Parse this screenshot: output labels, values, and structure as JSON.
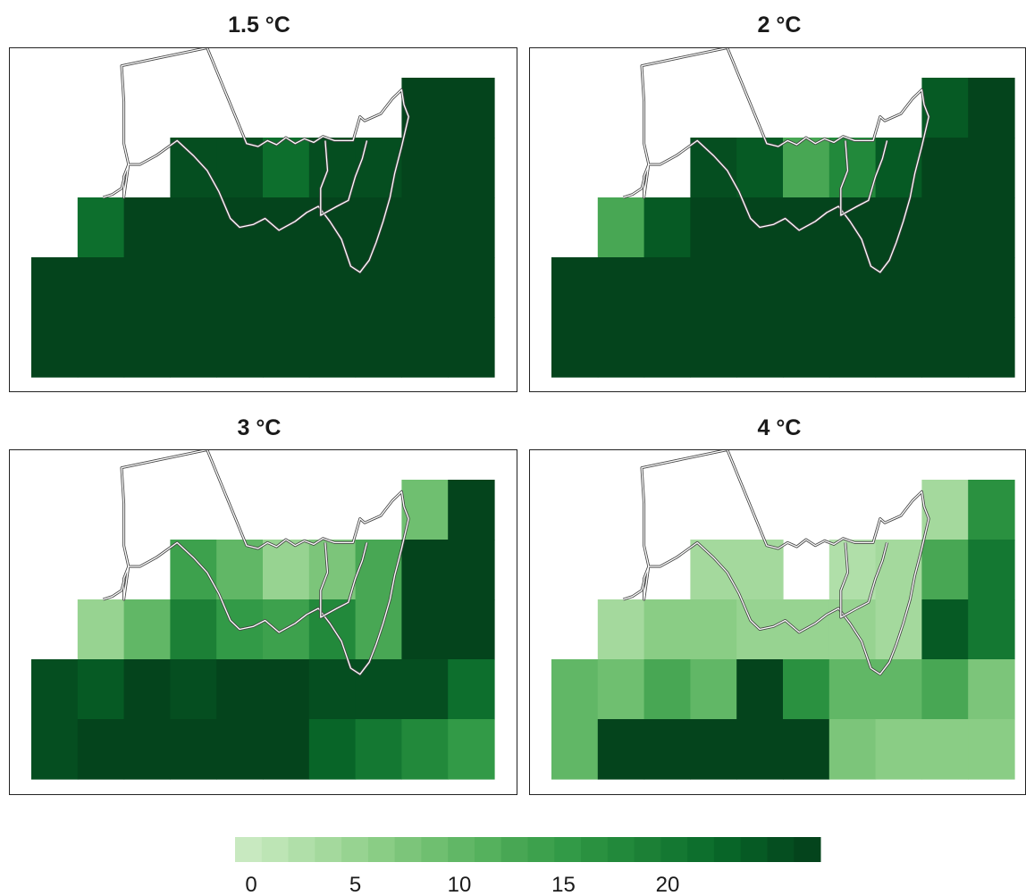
{
  "chart_data": {
    "type": "heatmap",
    "grid": {
      "cols": 10,
      "rows": 5
    },
    "colorbar": {
      "min": 0,
      "max": 21,
      "ticks": [
        0,
        5,
        10,
        15,
        20
      ],
      "tick_labels": [
        "0",
        "5",
        "10",
        "15",
        "20"
      ],
      "palette": [
        "#c8e9c0",
        "#bde5b5",
        "#b0dfa9",
        "#a4d99d",
        "#97d391",
        "#8acd85",
        "#7cc57a",
        "#6fbf70",
        "#61b766",
        "#55b15d",
        "#48a754",
        "#3da14d",
        "#329a47",
        "#2a9140",
        "#22893b",
        "#1c8036",
        "#147832",
        "#0d6f2d",
        "#086528",
        "#065a24",
        "#054e20",
        "#04441c"
      ]
    },
    "panels": [
      {
        "title": "1.5 °C",
        "values": [
          [
            null,
            null,
            null,
            null,
            null,
            null,
            null,
            null,
            21,
            21
          ],
          [
            null,
            null,
            null,
            20,
            20,
            17,
            20,
            20,
            21,
            21
          ],
          [
            null,
            17,
            21,
            21,
            21,
            21,
            21,
            21,
            21,
            21
          ],
          [
            21,
            21,
            21,
            21,
            21,
            21,
            21,
            21,
            21,
            21
          ],
          [
            21,
            21,
            21,
            21,
            21,
            21,
            21,
            21,
            21,
            21
          ]
        ]
      },
      {
        "title": "2 °C",
        "values": [
          [
            null,
            null,
            null,
            null,
            null,
            null,
            null,
            null,
            19,
            21
          ],
          [
            null,
            null,
            null,
            20,
            19,
            10,
            14,
            19,
            21,
            21
          ],
          [
            null,
            10,
            19,
            21,
            21,
            21,
            21,
            21,
            21,
            21
          ],
          [
            21,
            21,
            21,
            21,
            21,
            21,
            21,
            21,
            21,
            21
          ],
          [
            21,
            21,
            21,
            21,
            21,
            21,
            21,
            21,
            21,
            21
          ]
        ]
      },
      {
        "title": "3 °C",
        "values": [
          [
            null,
            null,
            null,
            null,
            null,
            null,
            null,
            null,
            7,
            21
          ],
          [
            null,
            null,
            null,
            11,
            8,
            4,
            6,
            10,
            21,
            21
          ],
          [
            null,
            4,
            8,
            15,
            12,
            11,
            14,
            10,
            21,
            21
          ],
          [
            20,
            19,
            21,
            20,
            21,
            21,
            20,
            20,
            20,
            17
          ],
          [
            20,
            21,
            21,
            21,
            21,
            21,
            18,
            16,
            14,
            12
          ]
        ]
      },
      {
        "title": "4 °C",
        "values": [
          [
            null,
            null,
            null,
            null,
            null,
            null,
            null,
            null,
            3,
            13
          ],
          [
            null,
            null,
            null,
            3,
            3,
            null,
            2,
            3,
            10,
            16
          ],
          [
            null,
            3,
            5,
            5,
            4,
            4,
            4,
            3,
            19,
            16
          ],
          [
            8,
            7,
            10,
            8,
            21,
            13,
            8,
            8,
            10,
            6
          ],
          [
            8,
            21,
            21,
            21,
            21,
            21,
            6,
            5,
            5,
            5
          ]
        ]
      }
    ]
  },
  "outline_stroke": "#444444",
  "outline_halo": "#ffffff"
}
